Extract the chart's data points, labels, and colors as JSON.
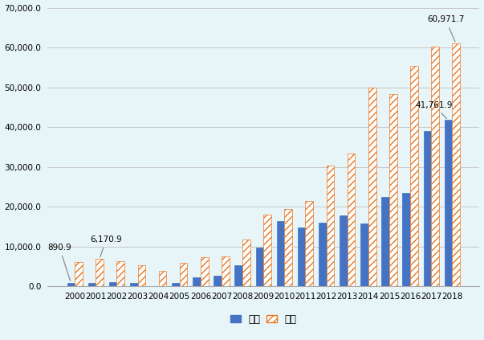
{
  "years": [
    2000,
    2001,
    2002,
    2003,
    2004,
    2005,
    2006,
    2007,
    2008,
    2009,
    2010,
    2011,
    2012,
    2013,
    2014,
    2015,
    2016,
    2017,
    2018
  ],
  "china": [
    890.9,
    900,
    1050,
    850,
    150,
    900,
    2200,
    2700,
    5400,
    9800,
    16500,
    14800,
    16000,
    17800,
    15800,
    22500,
    23400,
    39000,
    41761.9
  ],
  "hongkong": [
    6170.9,
    6900,
    6400,
    5400,
    3900,
    5900,
    7400,
    7500,
    11800,
    18000,
    19500,
    21500,
    30400,
    33400,
    49900,
    48400,
    55400,
    60300,
    60971.7
  ],
  "china_color": "#4472C4",
  "hk_color_edge": "#E87722",
  "bg_color": "#E8F5F8",
  "gridline_color": "#C8C8C8",
  "ylim": [
    0,
    70000
  ],
  "yticks": [
    0,
    10000,
    20000,
    30000,
    40000,
    50000,
    60000,
    70000
  ],
  "ytick_labels": [
    "0.0",
    "10,000.0",
    "20,000.0",
    "30,000.0",
    "40,000.0",
    "50,000.0",
    "60,000.0",
    "70,000.0"
  ],
  "ann_2000_china_val": "890.9",
  "ann_2001_hk_val": "6,170.9",
  "ann_2018_china_val": "41,761.9",
  "ann_2018_hk_val": "60,971.7",
  "legend_china": "中国",
  "legend_hk": "香港"
}
